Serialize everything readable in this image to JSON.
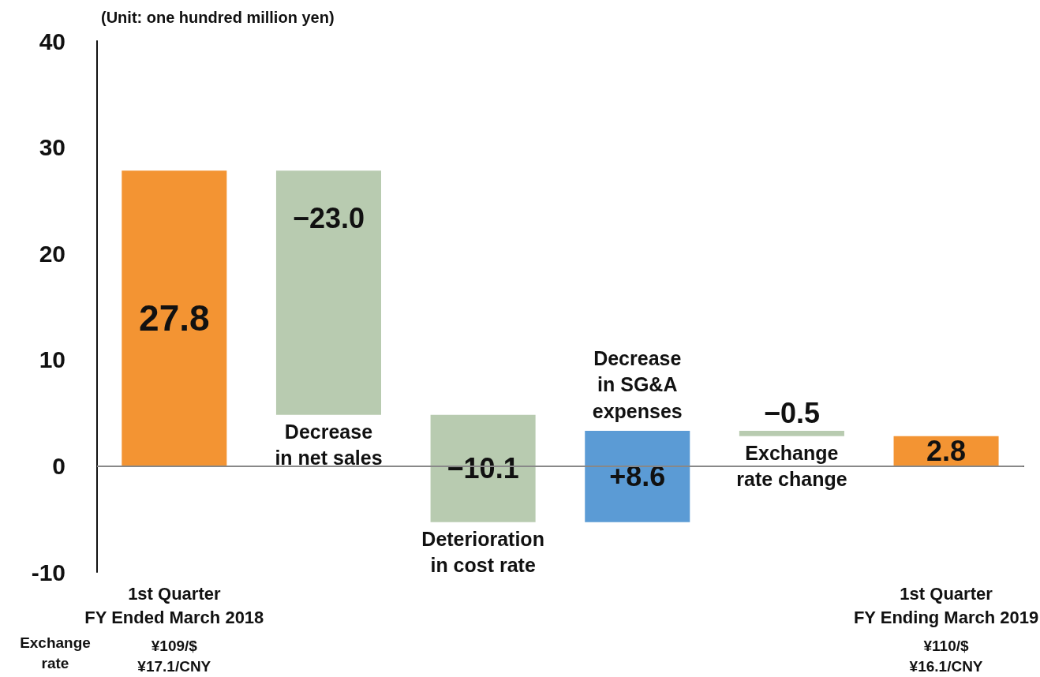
{
  "chart_data": {
    "type": "bar",
    "ylabel": "(Unit: one hundred million yen)",
    "categories": [
      "1st Quarter\nFY Ended March 2018",
      null,
      null,
      null,
      null,
      "1st Quarter\nFY Ending March 2019"
    ],
    "values": [
      27.8,
      -23.0,
      -10.1,
      8.6,
      -0.5,
      2.8
    ],
    "base": [
      0,
      27.8,
      4.8,
      -5.3,
      3.3,
      0
    ],
    "colors": [
      "#f39433",
      "#b8cbb0",
      "#b8cbb0",
      "#5b9bd5",
      "#b8cbb0",
      "#f39433"
    ],
    "value_labels": [
      "27.8",
      "−23.0",
      "−10.1",
      "+8.6",
      "−0.5",
      "2.8"
    ],
    "ylim": [
      -10,
      40
    ],
    "yticks": [
      -10,
      0,
      10,
      20,
      30,
      40
    ],
    "grid": false,
    "ref_lines": [
      {
        "axis": "y",
        "value": 0,
        "label": null,
        "color": "#888888"
      }
    ],
    "annotations": [
      "Decrease\nin net sales",
      "Deterioration\nin cost rate",
      "Decrease\nin SG&A\nexpenses",
      "Exchange\nrate change",
      "Exchange\nrate",
      "¥109/$\n¥17.1/CNY",
      "¥110/$\n¥16.1/CNY"
    ]
  }
}
